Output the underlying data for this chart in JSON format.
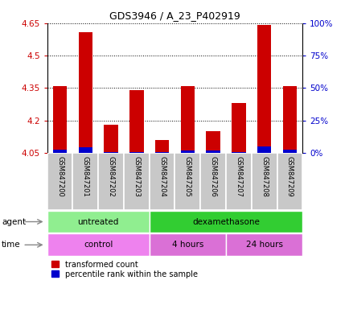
{
  "title": "GDS3946 / A_23_P402919",
  "samples": [
    "GSM847200",
    "GSM847201",
    "GSM847202",
    "GSM847203",
    "GSM847204",
    "GSM847205",
    "GSM847206",
    "GSM847207",
    "GSM847208",
    "GSM847209"
  ],
  "baseline": 4.05,
  "red_tops": [
    4.36,
    4.61,
    4.18,
    4.34,
    4.11,
    4.36,
    4.15,
    4.28,
    4.64,
    4.36
  ],
  "blue_tops": [
    4.065,
    4.075,
    4.055,
    4.055,
    4.055,
    4.06,
    4.06,
    4.055,
    4.08,
    4.065
  ],
  "ylim": [
    4.05,
    4.65
  ],
  "yticks_left": [
    4.05,
    4.2,
    4.35,
    4.5,
    4.65
  ],
  "yticks_right": [
    0,
    25,
    50,
    75,
    100
  ],
  "yticks_right_vals": [
    4.05,
    4.2,
    4.35,
    4.5,
    4.65
  ],
  "red_color": "#cc0000",
  "blue_color": "#0000cc",
  "agent_groups": [
    {
      "label": "untreated",
      "start": 0,
      "end": 4,
      "color": "#90ee90"
    },
    {
      "label": "dexamethasone",
      "start": 4,
      "end": 10,
      "color": "#32cd32"
    }
  ],
  "time_groups": [
    {
      "label": "control",
      "start": 0,
      "end": 4,
      "color": "#ee82ee"
    },
    {
      "label": "4 hours",
      "start": 4,
      "end": 7,
      "color": "#da70d6"
    },
    {
      "label": "24 hours",
      "start": 7,
      "end": 10,
      "color": "#da70d6"
    }
  ],
  "legend_red": "transformed count",
  "legend_blue": "percentile rank within the sample",
  "bar_width": 0.55,
  "label_area_color": "#c8c8c8"
}
